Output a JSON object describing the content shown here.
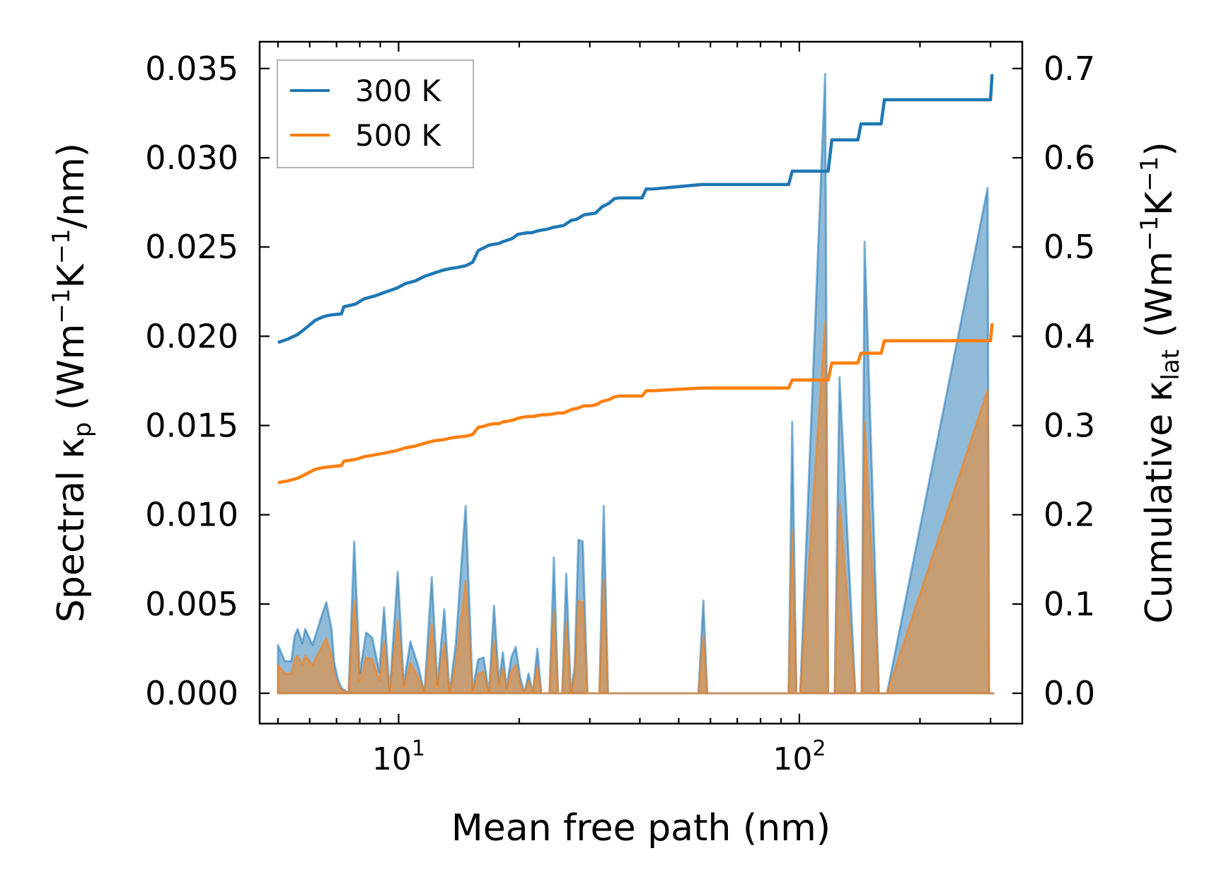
{
  "chart_data": {
    "type": "line",
    "xscale": "log",
    "xlim": [
      4.5,
      360
    ],
    "ylim_left": [
      -0.0017,
      0.0365
    ],
    "ylim_right": [
      -0.034,
      0.73
    ],
    "xlabel": "Mean free path (nm)",
    "ylabel_left": {
      "main": "Spectral κ",
      "sub": "p",
      "units_open": " (Wm",
      "exp1": "−1",
      "mid": "K",
      "exp2": "−1",
      "tail": "/nm)"
    },
    "ylabel_right": {
      "main": "Cumulative κ",
      "sub": "lat",
      "units_open": " (Wm",
      "exp1": "−1",
      "mid": "K",
      "exp2": "−1",
      "tail": ")"
    },
    "x_ticks": [
      {
        "value": 10,
        "base": "10",
        "exp": "1"
      },
      {
        "value": 100,
        "base": "10",
        "exp": "2"
      }
    ],
    "y_ticks_left": [
      "0.000",
      "0.005",
      "0.010",
      "0.015",
      "0.020",
      "0.025",
      "0.030",
      "0.035"
    ],
    "y_ticks_right": [
      "0.0",
      "0.1",
      "0.2",
      "0.3",
      "0.4",
      "0.5",
      "0.6",
      "0.7"
    ],
    "legend": {
      "position": "upper-left",
      "entries": [
        {
          "label": "300 K",
          "color": "#1f77b4"
        },
        {
          "label": "500 K",
          "color": "#ff7f0e"
        }
      ]
    },
    "colors": {
      "blue": "#1f77b4",
      "orange": "#ff7f0e"
    },
    "spectral_x": [
      5,
      5.2,
      5.4,
      5.5,
      5.6,
      5.75,
      5.85,
      6.1,
      6.4,
      6.6,
      6.8,
      6.9,
      7.05,
      7.2,
      7.5,
      7.75,
      8.0,
      8.3,
      8.6,
      8.95,
      9.2,
      9.5,
      9.95,
      10.3,
      10.7,
      11.2,
      11.6,
      12.1,
      12.5,
      13.0,
      13.4,
      13.9,
      14.3,
      14.7,
      15.3,
      15.8,
      16.3,
      16.8,
      17.3,
      17.8,
      18.2,
      18.6,
      19.1,
      19.6,
      20.1,
      20.6,
      21.1,
      21.6,
      22.2,
      22.7,
      23.3,
      23.8,
      24.4,
      25.0,
      25.6,
      26.2,
      26.9,
      27.5,
      28.1,
      28.8,
      29.6,
      30.3,
      31.0,
      31.7,
      32.5,
      33.3,
      34.0,
      34.8,
      35.6,
      36.5,
      38.0,
      39.0,
      40.0,
      41.0,
      42.0,
      43.5,
      56.0,
      57.6,
      58.9,
      94.0,
      96.0,
      98.3,
      100.5,
      116.0,
      118.0,
      120.0,
      122.5,
      126.0,
      138.0,
      140.5,
      143.0,
      145.5,
      158.0,
      160.5,
      163.0,
      165.5,
      295.0,
      297.5,
      300.0,
      302.5,
      305.0
    ],
    "spectral_300K": [
      0.0027,
      0.0018,
      0.0018,
      0.0032,
      0.0036,
      0.0028,
      0.0036,
      0.0027,
      0.0042,
      0.0051,
      0.0036,
      0.0018,
      0.0008,
      0.0003,
      0.0,
      0.0085,
      0.0011,
      0.0034,
      0.0031,
      0.0012,
      0.0048,
      0.0,
      0.0068,
      0.0005,
      0.0029,
      0.0015,
      0.0,
      0.0065,
      0.0005,
      0.0047,
      0.0,
      0.0028,
      0.0068,
      0.0105,
      0.0002,
      0.0019,
      0.002,
      0.0,
      0.0049,
      0.0006,
      0.0023,
      0.0003,
      0.002,
      0.0026,
      0.0009,
      0.0,
      0.0011,
      0.0,
      0.0025,
      0.0,
      0.0,
      0.0,
      0.0076,
      0.0,
      0.0,
      0.0067,
      0.0,
      0.0015,
      0.0086,
      0.0085,
      0.0,
      0.0,
      0.0,
      0.0,
      0.0105,
      0.0,
      0.0,
      0.0,
      0.0,
      0.0,
      0.0,
      0.0,
      0.0,
      0.0,
      0.0,
      0.0,
      0.0,
      0.0052,
      0.0,
      0.0,
      0.0152,
      0.0,
      0.0,
      0.0347,
      0.0,
      0.0,
      0.0,
      0.0177,
      0.0,
      0.0,
      0.0,
      0.0253,
      0.0,
      0.0,
      0.0,
      0.0,
      0.0283,
      0.0,
      0.0,
      0.0,
      0.0
    ],
    "spectral_500K": [
      0.0016,
      0.0011,
      0.0011,
      0.0019,
      0.0021,
      0.0016,
      0.0021,
      0.0016,
      0.0025,
      0.0031,
      0.0021,
      0.0011,
      0.0005,
      0.0002,
      0.0,
      0.0052,
      0.0007,
      0.002,
      0.0019,
      0.0007,
      0.0029,
      0.0,
      0.0041,
      0.0003,
      0.0017,
      0.0009,
      0.0,
      0.0039,
      0.0003,
      0.0028,
      0.0,
      0.0017,
      0.0041,
      0.0063,
      0.0001,
      0.0011,
      0.0012,
      0.0,
      0.0029,
      0.0004,
      0.0014,
      0.0002,
      0.0012,
      0.0016,
      0.0005,
      0.0,
      0.0007,
      0.0,
      0.0015,
      0.0,
      0.0,
      0.0,
      0.0046,
      0.0,
      0.0,
      0.004,
      0.0,
      0.0009,
      0.0052,
      0.0051,
      0.0,
      0.0,
      0.0,
      0.0,
      0.0064,
      0.0,
      0.0,
      0.0,
      0.0,
      0.0,
      0.0,
      0.0,
      0.0,
      0.0,
      0.0,
      0.0,
      0.0,
      0.0032,
      0.0,
      0.0,
      0.0091,
      0.0,
      0.0,
      0.0208,
      0.0,
      0.0,
      0.0,
      0.0106,
      0.0,
      0.0,
      0.0,
      0.0152,
      0.0,
      0.0,
      0.0,
      0.0,
      0.017,
      0.0,
      0.0,
      0.0,
      0.0
    ],
    "cumulative_x": [
      5,
      5.3,
      5.6,
      5.9,
      6.2,
      6.5,
      6.8,
      7.2,
      7.3,
      7.8,
      8.2,
      8.7,
      9.2,
      9.9,
      10.4,
      11.0,
      11.6,
      12.3,
      12.9,
      13.5,
      14.0,
      14.7,
      15.3,
      15.8,
      16.3,
      16.8,
      17.3,
      17.8,
      18.2,
      18.8,
      19.3,
      19.8,
      20.3,
      21.0,
      21.5,
      22.2,
      22.8,
      23.5,
      24.3,
      25.0,
      25.8,
      27.0,
      27.8,
      29.0,
      30.0,
      31.0,
      32.2,
      33.5,
      34.5,
      35.5,
      36.5,
      40.5,
      41.5,
      43.0,
      57.0,
      58.0,
      94.0,
      96.0,
      98.0,
      100.0,
      118.0,
      120.5,
      123.0,
      140.0,
      142.5,
      145.0,
      160.0,
      163.0,
      165.5,
      297.0,
      300.0,
      302.5,
      305.0
    ],
    "cumulative_300K": [
      0.393,
      0.397,
      0.402,
      0.41,
      0.418,
      0.422,
      0.424,
      0.425,
      0.433,
      0.436,
      0.442,
      0.445,
      0.449,
      0.454,
      0.459,
      0.462,
      0.467,
      0.471,
      0.474,
      0.476,
      0.477,
      0.479,
      0.483,
      0.496,
      0.499,
      0.502,
      0.503,
      0.504,
      0.506,
      0.508,
      0.51,
      0.514,
      0.515,
      0.516,
      0.516,
      0.518,
      0.519,
      0.52,
      0.522,
      0.523,
      0.524,
      0.53,
      0.531,
      0.536,
      0.537,
      0.538,
      0.545,
      0.549,
      0.554,
      0.555,
      0.555,
      0.555,
      0.565,
      0.565,
      0.57,
      0.57,
      0.57,
      0.585,
      0.585,
      0.585,
      0.585,
      0.62,
      0.62,
      0.62,
      0.638,
      0.638,
      0.638,
      0.665,
      0.665,
      0.665,
      0.665,
      0.692,
      0.692
    ],
    "cumulative_500K": [
      0.236,
      0.238,
      0.241,
      0.246,
      0.251,
      0.253,
      0.254,
      0.255,
      0.26,
      0.262,
      0.265,
      0.267,
      0.269,
      0.272,
      0.275,
      0.277,
      0.28,
      0.283,
      0.284,
      0.286,
      0.287,
      0.288,
      0.29,
      0.298,
      0.299,
      0.301,
      0.302,
      0.302,
      0.304,
      0.305,
      0.306,
      0.308,
      0.309,
      0.31,
      0.31,
      0.311,
      0.312,
      0.312,
      0.313,
      0.314,
      0.314,
      0.318,
      0.319,
      0.322,
      0.322,
      0.323,
      0.327,
      0.329,
      0.332,
      0.333,
      0.333,
      0.333,
      0.339,
      0.339,
      0.342,
      0.342,
      0.342,
      0.351,
      0.351,
      0.351,
      0.351,
      0.37,
      0.37,
      0.37,
      0.381,
      0.381,
      0.381,
      0.395,
      0.395,
      0.395,
      0.395,
      0.413,
      0.413
    ]
  }
}
